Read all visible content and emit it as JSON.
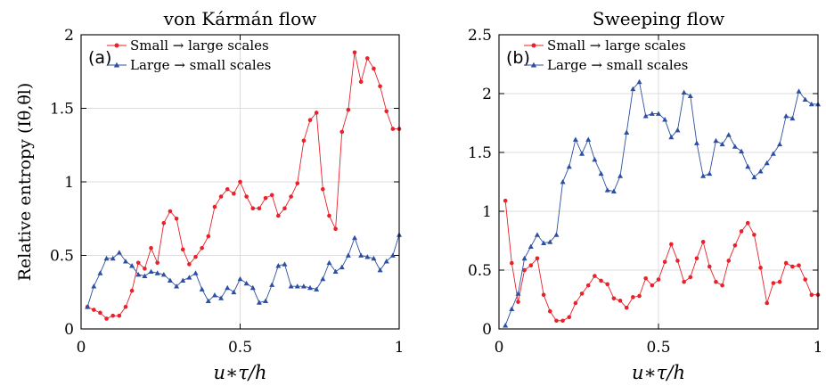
{
  "chart_data": [
    {
      "type": "line",
      "panel_label": "(a)",
      "title": "von Kármán flow",
      "xlabel": "u∗τ/h",
      "ylabel": "Relative entropy (Iθ,θl)",
      "xlim": [
        0,
        1
      ],
      "ylim": [
        0,
        2
      ],
      "xticks": [
        "0",
        "0.5",
        "1"
      ],
      "yticks": [
        "0",
        "0.5",
        "1",
        "1.5",
        "2"
      ],
      "grid": true,
      "legend_position": "top-left",
      "series": [
        {
          "name": "Small → large scales",
          "color": "#e8212a",
          "marker": "circle",
          "x": [
            0.02,
            0.04,
            0.06,
            0.08,
            0.1,
            0.12,
            0.14,
            0.16,
            0.18,
            0.2,
            0.22,
            0.24,
            0.26,
            0.28,
            0.3,
            0.32,
            0.34,
            0.36,
            0.38,
            0.4,
            0.42,
            0.44,
            0.46,
            0.48,
            0.5,
            0.52,
            0.54,
            0.56,
            0.58,
            0.6,
            0.62,
            0.64,
            0.66,
            0.68,
            0.7,
            0.72,
            0.74,
            0.76,
            0.78,
            0.8,
            0.82,
            0.84,
            0.86,
            0.88,
            0.9,
            0.92,
            0.94,
            0.96,
            0.98,
            1.0
          ],
          "y": [
            0.15,
            0.13,
            0.11,
            0.07,
            0.09,
            0.09,
            0.15,
            0.26,
            0.45,
            0.41,
            0.55,
            0.45,
            0.72,
            0.8,
            0.75,
            0.54,
            0.44,
            0.49,
            0.55,
            0.63,
            0.83,
            0.9,
            0.95,
            0.92,
            1.0,
            0.9,
            0.82,
            0.82,
            0.89,
            0.91,
            0.77,
            0.82,
            0.9,
            0.99,
            1.28,
            1.42,
            1.47,
            0.95,
            0.77,
            0.68,
            1.34,
            1.49,
            1.88,
            1.68,
            1.84,
            1.77,
            1.65,
            1.48,
            1.36,
            1.36
          ]
        },
        {
          "name": "Large → small scales",
          "color": "#2d4fa3",
          "marker": "triangle",
          "x": [
            0.02,
            0.04,
            0.06,
            0.08,
            0.1,
            0.12,
            0.14,
            0.16,
            0.18,
            0.2,
            0.22,
            0.24,
            0.26,
            0.28,
            0.3,
            0.32,
            0.34,
            0.36,
            0.38,
            0.4,
            0.42,
            0.44,
            0.46,
            0.48,
            0.5,
            0.52,
            0.54,
            0.56,
            0.58,
            0.6,
            0.62,
            0.64,
            0.66,
            0.68,
            0.7,
            0.72,
            0.74,
            0.76,
            0.78,
            0.8,
            0.82,
            0.84,
            0.86,
            0.88,
            0.9,
            0.92,
            0.94,
            0.96,
            0.98,
            1.0
          ],
          "y": [
            0.15,
            0.29,
            0.38,
            0.48,
            0.48,
            0.52,
            0.46,
            0.43,
            0.37,
            0.36,
            0.39,
            0.38,
            0.37,
            0.33,
            0.29,
            0.33,
            0.35,
            0.38,
            0.27,
            0.19,
            0.23,
            0.21,
            0.28,
            0.25,
            0.34,
            0.31,
            0.28,
            0.18,
            0.19,
            0.3,
            0.43,
            0.44,
            0.29,
            0.29,
            0.29,
            0.28,
            0.27,
            0.34,
            0.45,
            0.39,
            0.42,
            0.5,
            0.62,
            0.5,
            0.49,
            0.48,
            0.4,
            0.46,
            0.5,
            0.64
          ]
        }
      ]
    },
    {
      "type": "line",
      "panel_label": "(b)",
      "title": "Sweeping flow",
      "xlabel": "u∗τ/h",
      "ylabel": "",
      "xlim": [
        0,
        1
      ],
      "ylim": [
        0,
        2.5
      ],
      "xticks": [
        "0",
        "0.5",
        "1"
      ],
      "yticks": [
        "0",
        "0.5",
        "1",
        "1.5",
        "2",
        "2.5"
      ],
      "grid": true,
      "legend_position": "top-left",
      "series": [
        {
          "name": "Small → large scales",
          "color": "#e8212a",
          "marker": "circle",
          "x": [
            0.02,
            0.04,
            0.06,
            0.08,
            0.1,
            0.12,
            0.14,
            0.16,
            0.18,
            0.2,
            0.22,
            0.24,
            0.26,
            0.28,
            0.3,
            0.32,
            0.34,
            0.36,
            0.38,
            0.4,
            0.42,
            0.44,
            0.46,
            0.48,
            0.5,
            0.52,
            0.54,
            0.56,
            0.58,
            0.6,
            0.62,
            0.64,
            0.66,
            0.68,
            0.7,
            0.72,
            0.74,
            0.76,
            0.78,
            0.8,
            0.82,
            0.84,
            0.86,
            0.88,
            0.9,
            0.92,
            0.94,
            0.96,
            0.98,
            1.0
          ],
          "y": [
            1.09,
            0.56,
            0.23,
            0.5,
            0.54,
            0.6,
            0.29,
            0.15,
            0.07,
            0.07,
            0.1,
            0.22,
            0.3,
            0.37,
            0.45,
            0.41,
            0.38,
            0.26,
            0.24,
            0.18,
            0.27,
            0.28,
            0.43,
            0.37,
            0.42,
            0.57,
            0.72,
            0.58,
            0.4,
            0.44,
            0.6,
            0.74,
            0.53,
            0.4,
            0.37,
            0.58,
            0.71,
            0.83,
            0.9,
            0.8,
            0.52,
            0.22,
            0.39,
            0.4,
            0.56,
            0.53,
            0.54,
            0.42,
            0.29,
            0.29
          ]
        },
        {
          "name": "Large → small scales",
          "color": "#2d4fa3",
          "marker": "triangle",
          "x": [
            0.02,
            0.04,
            0.06,
            0.08,
            0.1,
            0.12,
            0.14,
            0.16,
            0.18,
            0.2,
            0.22,
            0.24,
            0.26,
            0.28,
            0.3,
            0.32,
            0.34,
            0.36,
            0.38,
            0.4,
            0.42,
            0.44,
            0.46,
            0.48,
            0.5,
            0.52,
            0.54,
            0.56,
            0.58,
            0.6,
            0.62,
            0.64,
            0.66,
            0.68,
            0.7,
            0.72,
            0.74,
            0.76,
            0.78,
            0.8,
            0.82,
            0.84,
            0.86,
            0.88,
            0.9,
            0.92,
            0.94,
            0.96,
            0.98,
            1.0
          ],
          "y": [
            0.03,
            0.17,
            0.3,
            0.6,
            0.7,
            0.8,
            0.73,
            0.74,
            0.8,
            1.25,
            1.38,
            1.61,
            1.49,
            1.61,
            1.44,
            1.32,
            1.18,
            1.17,
            1.3,
            1.67,
            2.04,
            2.1,
            1.81,
            1.83,
            1.83,
            1.78,
            1.63,
            1.69,
            2.01,
            1.98,
            1.58,
            1.3,
            1.32,
            1.6,
            1.57,
            1.65,
            1.55,
            1.51,
            1.38,
            1.29,
            1.34,
            1.41,
            1.49,
            1.57,
            1.81,
            1.79,
            2.02,
            1.95,
            1.91,
            1.91
          ]
        }
      ]
    }
  ]
}
